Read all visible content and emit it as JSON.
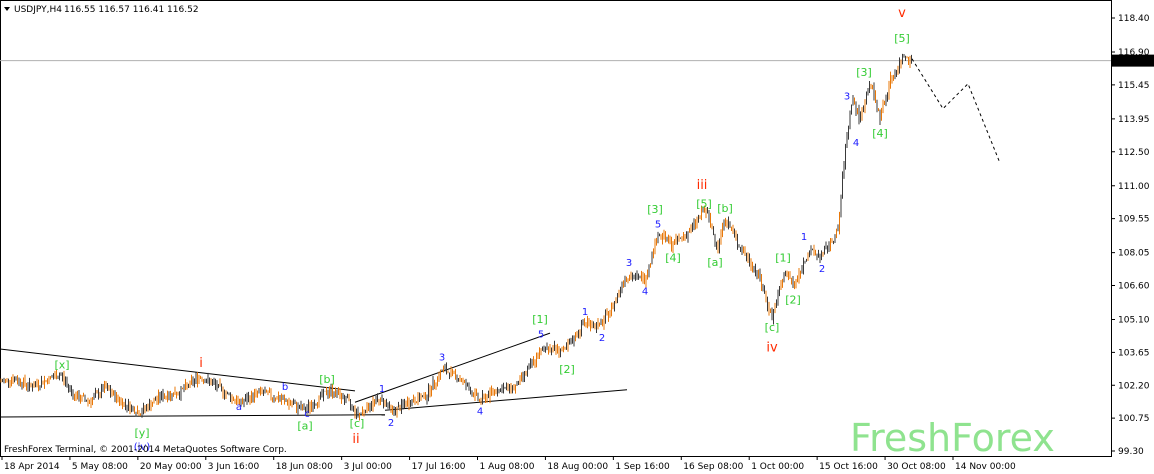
{
  "header": {
    "symbol": "USDJPY,H4",
    "ohlc": "116.55 116.57 116.41 116.52"
  },
  "footer": {
    "credit": "FreshForex Terminal, © 2001-2014 MetaQuotes Software Corp.",
    "brand": "FreshForex"
  },
  "colors": {
    "candle": "#e8780a",
    "candle_dark": "#3a3a3a",
    "wave_green": "#33cc33",
    "wave_blue": "#1a1aff",
    "wave_red": "#ff2a00",
    "axis": "#000000",
    "price_tag_bg": "#000000",
    "price_tag_text": "#ffffff"
  },
  "chart_data": {
    "type": "line",
    "style": "candlestick",
    "title": "USDJPY,H4",
    "current_price": "116.52",
    "y_ticks": [
      "118.40",
      "116.90",
      "115.45",
      "113.95",
      "112.50",
      "111.00",
      "109.55",
      "108.05",
      "106.60",
      "105.10",
      "103.65",
      "102.20",
      "100.75",
      "99.30"
    ],
    "x_ticks": [
      "18 Apr 2014",
      "5 May 08:00",
      "20 May 00:00",
      "3 Jun 16:00",
      "18 Jun 08:00",
      "3 Jul 00:00",
      "17 Jul 16:00",
      "1 Aug 08:00",
      "18 Aug 00:00",
      "1 Sep 16:00",
      "16 Sep 08:00",
      "1 Oct 00:00",
      "15 Oct 16:00",
      "30 Oct 08:00",
      "14 Nov 00:00"
    ],
    "ylim": [
      99.3,
      118.4
    ],
    "price_path": [
      {
        "t": 0,
        "p": 102.35
      },
      {
        "t": 15,
        "p": 102.5
      },
      {
        "t": 30,
        "p": 102.15
      },
      {
        "t": 45,
        "p": 102.4
      },
      {
        "t": 60,
        "p": 102.7
      },
      {
        "t": 75,
        "p": 101.7
      },
      {
        "t": 90,
        "p": 101.5
      },
      {
        "t": 105,
        "p": 102.1
      },
      {
        "t": 120,
        "p": 101.5
      },
      {
        "t": 140,
        "p": 101.0
      },
      {
        "t": 160,
        "p": 101.7
      },
      {
        "t": 180,
        "p": 101.9
      },
      {
        "t": 200,
        "p": 102.6
      },
      {
        "t": 215,
        "p": 102.2
      },
      {
        "t": 240,
        "p": 101.4
      },
      {
        "t": 260,
        "p": 101.9
      },
      {
        "t": 280,
        "p": 101.6
      },
      {
        "t": 305,
        "p": 101.1
      },
      {
        "t": 330,
        "p": 102.0
      },
      {
        "t": 345,
        "p": 101.6
      },
      {
        "t": 358,
        "p": 100.9
      },
      {
        "t": 375,
        "p": 101.5
      },
      {
        "t": 385,
        "p": 101.5
      },
      {
        "t": 392,
        "p": 101.0
      },
      {
        "t": 410,
        "p": 101.5
      },
      {
        "t": 425,
        "p": 101.7
      },
      {
        "t": 443,
        "p": 102.9
      },
      {
        "t": 460,
        "p": 102.5
      },
      {
        "t": 480,
        "p": 101.5
      },
      {
        "t": 495,
        "p": 102.0
      },
      {
        "t": 515,
        "p": 102.1
      },
      {
        "t": 530,
        "p": 103.0
      },
      {
        "t": 545,
        "p": 103.9
      },
      {
        "t": 565,
        "p": 103.7
      },
      {
        "t": 585,
        "p": 105.0
      },
      {
        "t": 600,
        "p": 104.8
      },
      {
        "t": 612,
        "p": 105.6
      },
      {
        "t": 625,
        "p": 107.0
      },
      {
        "t": 645,
        "p": 106.9
      },
      {
        "t": 658,
        "p": 108.9
      },
      {
        "t": 672,
        "p": 108.4
      },
      {
        "t": 690,
        "p": 109.0
      },
      {
        "t": 705,
        "p": 110.0
      },
      {
        "t": 718,
        "p": 108.3
      },
      {
        "t": 725,
        "p": 109.6
      },
      {
        "t": 740,
        "p": 108.3
      },
      {
        "t": 758,
        "p": 107.1
      },
      {
        "t": 772,
        "p": 105.2
      },
      {
        "t": 785,
        "p": 107.2
      },
      {
        "t": 795,
        "p": 106.6
      },
      {
        "t": 808,
        "p": 108.1
      },
      {
        "t": 822,
        "p": 107.9
      },
      {
        "t": 838,
        "p": 109.0
      },
      {
        "t": 845,
        "p": 112.5
      },
      {
        "t": 852,
        "p": 114.9
      },
      {
        "t": 860,
        "p": 113.9
      },
      {
        "t": 870,
        "p": 115.6
      },
      {
        "t": 880,
        "p": 114.0
      },
      {
        "t": 890,
        "p": 115.6
      },
      {
        "t": 905,
        "p": 116.8
      },
      {
        "t": 912,
        "p": 116.52
      }
    ],
    "projection": [
      {
        "t": 912,
        "p": 116.6
      },
      {
        "t": 943,
        "p": 114.4
      },
      {
        "t": 968,
        "p": 115.5
      },
      {
        "t": 1000,
        "p": 112.0
      }
    ],
    "wave_labels": [
      {
        "text": "[x]",
        "color": "green",
        "t": 62,
        "p": 102.95
      },
      {
        "text": "i",
        "color": "red",
        "t": 201,
        "p": 103.0
      },
      {
        "text": "a",
        "color": "blue",
        "t": 239,
        "p": 101.1
      },
      {
        "text": "b",
        "color": "blue",
        "t": 285,
        "p": 102.0
      },
      {
        "text": "[b]",
        "color": "green",
        "t": 327,
        "p": 102.3
      },
      {
        "text": "c",
        "color": "blue",
        "t": 307,
        "p": 100.8
      },
      {
        "text": "[a]",
        "color": "green",
        "t": 305,
        "p": 100.25
      },
      {
        "text": "[c]",
        "color": "green",
        "t": 357,
        "p": 100.35
      },
      {
        "text": "ii",
        "color": "red",
        "t": 356,
        "p": 99.65
      },
      {
        "text": "[y]",
        "color": "green",
        "t": 142,
        "p": 99.95
      },
      {
        "text": "(iv)",
        "color": "blue",
        "t": 142,
        "p": 99.35
      },
      {
        "text": "1",
        "color": "blue",
        "t": 382,
        "p": 101.9
      },
      {
        "text": "2",
        "color": "blue",
        "t": 391,
        "p": 100.4
      },
      {
        "text": "3",
        "color": "blue",
        "t": 442,
        "p": 103.3
      },
      {
        "text": "4",
        "color": "blue",
        "t": 480,
        "p": 100.9
      },
      {
        "text": "5",
        "color": "blue",
        "t": 541,
        "p": 104.3
      },
      {
        "text": "[1]",
        "color": "green",
        "t": 540,
        "p": 104.95
      },
      {
        "text": "[2]",
        "color": "green",
        "t": 567,
        "p": 102.75
      },
      {
        "text": "1",
        "color": "blue",
        "t": 585,
        "p": 105.3
      },
      {
        "text": "2",
        "color": "blue",
        "t": 602,
        "p": 104.15
      },
      {
        "text": "3",
        "color": "blue",
        "t": 629,
        "p": 107.45
      },
      {
        "text": "4",
        "color": "blue",
        "t": 645,
        "p": 106.2
      },
      {
        "text": "5",
        "color": "blue",
        "t": 658,
        "p": 109.15
      },
      {
        "text": "[3]",
        "color": "green",
        "t": 655,
        "p": 109.8
      },
      {
        "text": "[4]",
        "color": "green",
        "t": 673,
        "p": 107.65
      },
      {
        "text": "[5]",
        "color": "green",
        "t": 704,
        "p": 110.05
      },
      {
        "text": "iii",
        "color": "red",
        "t": 702,
        "p": 110.85
      },
      {
        "text": "[b]",
        "color": "green",
        "t": 725,
        "p": 109.85
      },
      {
        "text": "[a]",
        "color": "green",
        "t": 715,
        "p": 107.45
      },
      {
        "text": "[1]",
        "color": "green",
        "t": 783,
        "p": 107.65
      },
      {
        "text": "[2]",
        "color": "green",
        "t": 793,
        "p": 105.8
      },
      {
        "text": "[c]",
        "color": "green",
        "t": 772,
        "p": 104.6
      },
      {
        "text": "iv",
        "color": "red",
        "t": 772,
        "p": 103.7
      },
      {
        "text": "1",
        "color": "blue",
        "t": 804,
        "p": 108.6
      },
      {
        "text": "2",
        "color": "blue",
        "t": 822,
        "p": 107.2
      },
      {
        "text": "3",
        "color": "blue",
        "t": 847,
        "p": 114.8
      },
      {
        "text": "4",
        "color": "blue",
        "t": 856,
        "p": 112.75
      },
      {
        "text": "[3]",
        "color": "green",
        "t": 864,
        "p": 115.85
      },
      {
        "text": "[4]",
        "color": "green",
        "t": 880,
        "p": 113.15
      },
      {
        "text": "[5]",
        "color": "green",
        "t": 902,
        "p": 117.35
      },
      {
        "text": "v",
        "color": "red",
        "t": 902,
        "p": 118.45
      }
    ],
    "trend_lines": [
      {
        "from": {
          "t": 0,
          "p": 103.8
        },
        "to": {
          "t": 355,
          "p": 101.95
        }
      },
      {
        "from": {
          "t": 0,
          "p": 100.8
        },
        "to": {
          "t": 385,
          "p": 100.9
        }
      },
      {
        "from": {
          "t": 355,
          "p": 101.45
        },
        "to": {
          "t": 550,
          "p": 104.5
        }
      },
      {
        "from": {
          "t": 385,
          "p": 101.1
        },
        "to": {
          "t": 627,
          "p": 102.0
        }
      }
    ]
  }
}
